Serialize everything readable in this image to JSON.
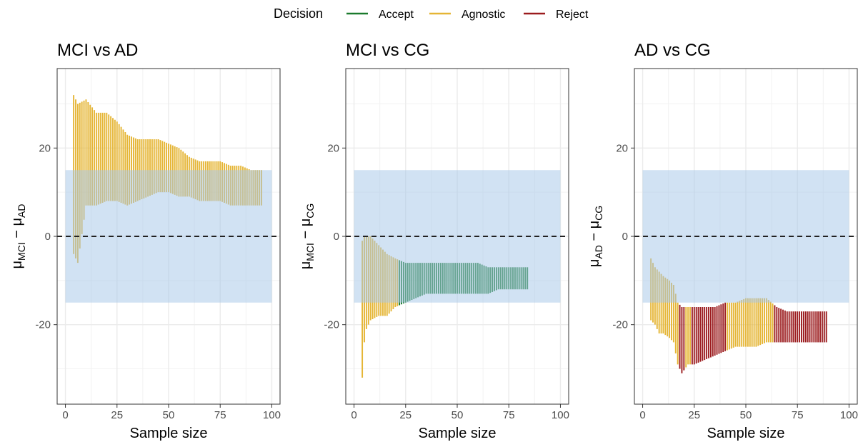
{
  "legend": {
    "title": "Decision",
    "items": [
      {
        "label": "Accept",
        "color": "#1b7a2d"
      },
      {
        "label": "Agnostic",
        "color": "#e5b534"
      },
      {
        "label": "Reject",
        "color": "#9b1b1e"
      }
    ]
  },
  "chart_data": [
    {
      "type": "interval",
      "title": "MCI vs AD",
      "xlabel": "Sample size",
      "ylabel": "μMCI − μAD",
      "ylabel_main": "μ",
      "ylabel_sub1": "MCI",
      "ylabel_minus": " − μ",
      "ylabel_sub2": "AD",
      "xlim": [
        -4,
        104
      ],
      "ylim": [
        -38,
        38
      ],
      "xticks": [
        0,
        25,
        50,
        75,
        100
      ],
      "yticks": [
        -20,
        0,
        20
      ],
      "rope": [
        -15,
        15
      ],
      "rope_x": [
        0,
        100
      ],
      "reference_line": 0,
      "segments": [
        {
          "x_range": [
            4,
            95
          ],
          "decision": "Agnostic"
        }
      ],
      "interval_keypoints": [
        {
          "x": 4,
          "lower": -4,
          "upper": 32
        },
        {
          "x": 6,
          "lower": -6,
          "upper": 30
        },
        {
          "x": 10,
          "lower": 7,
          "upper": 31
        },
        {
          "x": 15,
          "lower": 7,
          "upper": 28
        },
        {
          "x": 20,
          "lower": 8,
          "upper": 28
        },
        {
          "x": 25,
          "lower": 8,
          "upper": 26
        },
        {
          "x": 30,
          "lower": 7,
          "upper": 23
        },
        {
          "x": 35,
          "lower": 8,
          "upper": 22
        },
        {
          "x": 40,
          "lower": 9,
          "upper": 22
        },
        {
          "x": 45,
          "lower": 10,
          "upper": 22
        },
        {
          "x": 50,
          "lower": 10,
          "upper": 21
        },
        {
          "x": 55,
          "lower": 9,
          "upper": 20
        },
        {
          "x": 60,
          "lower": 9,
          "upper": 18
        },
        {
          "x": 65,
          "lower": 8,
          "upper": 17
        },
        {
          "x": 70,
          "lower": 8,
          "upper": 17
        },
        {
          "x": 75,
          "lower": 8,
          "upper": 17
        },
        {
          "x": 80,
          "lower": 7,
          "upper": 16
        },
        {
          "x": 85,
          "lower": 7,
          "upper": 16
        },
        {
          "x": 90,
          "lower": 7,
          "upper": 15
        },
        {
          "x": 95,
          "lower": 7,
          "upper": 15
        }
      ]
    },
    {
      "type": "interval",
      "title": "MCI vs CG",
      "xlabel": "Sample size",
      "ylabel": "μMCI − μCG",
      "ylabel_main": "μ",
      "ylabel_sub1": "MCI",
      "ylabel_minus": " − μ",
      "ylabel_sub2": "CG",
      "xlim": [
        -4,
        104
      ],
      "ylim": [
        -38,
        38
      ],
      "xticks": [
        0,
        25,
        50,
        75,
        100
      ],
      "yticks": [
        -20,
        0,
        20
      ],
      "rope": [
        -15,
        15
      ],
      "rope_x": [
        0,
        100
      ],
      "reference_line": 0,
      "segments": [
        {
          "x_range": [
            4,
            21
          ],
          "decision": "Agnostic"
        },
        {
          "x_range": [
            22,
            84
          ],
          "decision": "Accept"
        }
      ],
      "interval_keypoints": [
        {
          "x": 4,
          "lower": -32,
          "upper": -1
        },
        {
          "x": 5,
          "lower": -24,
          "upper": 0
        },
        {
          "x": 6,
          "lower": -21,
          "upper": 0
        },
        {
          "x": 8,
          "lower": -19,
          "upper": 0
        },
        {
          "x": 12,
          "lower": -18,
          "upper": -2
        },
        {
          "x": 16,
          "lower": -18,
          "upper": -4
        },
        {
          "x": 20,
          "lower": -16,
          "upper": -5
        },
        {
          "x": 25,
          "lower": -15,
          "upper": -6
        },
        {
          "x": 30,
          "lower": -14,
          "upper": -6
        },
        {
          "x": 35,
          "lower": -13,
          "upper": -6
        },
        {
          "x": 40,
          "lower": -13,
          "upper": -6
        },
        {
          "x": 45,
          "lower": -13,
          "upper": -6
        },
        {
          "x": 50,
          "lower": -13,
          "upper": -6
        },
        {
          "x": 55,
          "lower": -13,
          "upper": -6
        },
        {
          "x": 60,
          "lower": -13,
          "upper": -6
        },
        {
          "x": 65,
          "lower": -13,
          "upper": -7
        },
        {
          "x": 70,
          "lower": -12,
          "upper": -7
        },
        {
          "x": 75,
          "lower": -12,
          "upper": -7
        },
        {
          "x": 80,
          "lower": -12,
          "upper": -7
        },
        {
          "x": 84,
          "lower": -12,
          "upper": -7
        }
      ]
    },
    {
      "type": "interval",
      "title": "AD vs CG",
      "xlabel": "Sample size",
      "ylabel": "μAD − μCG",
      "ylabel_main": "μ",
      "ylabel_sub1": "AD",
      "ylabel_minus": " − μ",
      "ylabel_sub2": "CG",
      "xlim": [
        -4,
        104
      ],
      "ylim": [
        -38,
        38
      ],
      "xticks": [
        0,
        25,
        50,
        75,
        100
      ],
      "yticks": [
        -20,
        0,
        20
      ],
      "rope": [
        -15,
        15
      ],
      "rope_x": [
        0,
        100
      ],
      "reference_line": 0,
      "segments": [
        {
          "x_range": [
            4,
            17
          ],
          "decision": "Agnostic"
        },
        {
          "x_range": [
            18,
            20
          ],
          "decision": "Reject"
        },
        {
          "x_range": [
            21,
            23
          ],
          "decision": "Agnostic"
        },
        {
          "x_range": [
            24,
            40
          ],
          "decision": "Reject"
        },
        {
          "x_range": [
            41,
            63
          ],
          "decision": "Agnostic"
        },
        {
          "x_range": [
            64,
            89
          ],
          "decision": "Reject"
        }
      ],
      "interval_keypoints": [
        {
          "x": 4,
          "lower": -19,
          "upper": -5
        },
        {
          "x": 6,
          "lower": -20,
          "upper": -7
        },
        {
          "x": 8,
          "lower": -22,
          "upper": -8
        },
        {
          "x": 10,
          "lower": -22,
          "upper": -9
        },
        {
          "x": 13,
          "lower": -23,
          "upper": -10
        },
        {
          "x": 15,
          "lower": -24,
          "upper": -11
        },
        {
          "x": 17,
          "lower": -29,
          "upper": -15
        },
        {
          "x": 19,
          "lower": -31,
          "upper": -16
        },
        {
          "x": 22,
          "lower": -29,
          "upper": -16
        },
        {
          "x": 25,
          "lower": -29,
          "upper": -16
        },
        {
          "x": 30,
          "lower": -28,
          "upper": -16
        },
        {
          "x": 35,
          "lower": -27,
          "upper": -16
        },
        {
          "x": 40,
          "lower": -26,
          "upper": -15
        },
        {
          "x": 45,
          "lower": -25,
          "upper": -15
        },
        {
          "x": 50,
          "lower": -25,
          "upper": -14
        },
        {
          "x": 55,
          "lower": -25,
          "upper": -14
        },
        {
          "x": 60,
          "lower": -24,
          "upper": -14
        },
        {
          "x": 65,
          "lower": -24,
          "upper": -16
        },
        {
          "x": 70,
          "lower": -24,
          "upper": -17
        },
        {
          "x": 75,
          "lower": -24,
          "upper": -17
        },
        {
          "x": 80,
          "lower": -24,
          "upper": -17
        },
        {
          "x": 85,
          "lower": -24,
          "upper": -17
        },
        {
          "x": 89,
          "lower": -24,
          "upper": -17
        }
      ]
    }
  ]
}
